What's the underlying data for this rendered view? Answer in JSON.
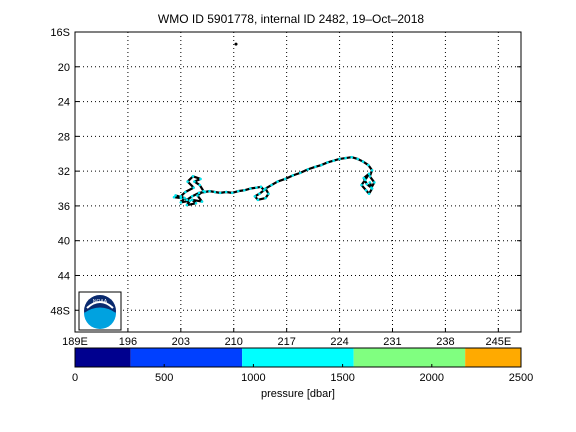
{
  "chart_data": {
    "type": "scatter",
    "title": "WMO ID 5901778, internal ID 2482, 19–Oct–2018",
    "map": {
      "lon_range": [
        189,
        248
      ],
      "lat_range": [
        -50.5,
        -16
      ],
      "x_ticks": [
        {
          "value": 189,
          "label": "189E"
        },
        {
          "value": 196,
          "label": "196"
        },
        {
          "value": 203,
          "label": "203"
        },
        {
          "value": 210,
          "label": "210"
        },
        {
          "value": 217,
          "label": "217"
        },
        {
          "value": 224,
          "label": "224"
        },
        {
          "value": 231,
          "label": "231"
        },
        {
          "value": 238,
          "label": "238"
        },
        {
          "value": 245,
          "label": "245E"
        }
      ],
      "y_ticks": [
        {
          "value": -16,
          "label": "16S"
        },
        {
          "value": -20,
          "label": "20"
        },
        {
          "value": -24,
          "label": "24"
        },
        {
          "value": -28,
          "label": "28"
        },
        {
          "value": -32,
          "label": "32"
        },
        {
          "value": -36,
          "label": "36"
        },
        {
          "value": -40,
          "label": "40"
        },
        {
          "value": -44,
          "label": "44"
        },
        {
          "value": -48,
          "label": "48S"
        }
      ],
      "grid": true,
      "logo": "noaa-logo"
    },
    "track": {
      "lon": [
        202.1,
        203.0,
        202.3,
        203.5,
        203.0,
        204.2,
        203.8,
        205.0,
        204.5,
        205.8,
        205.2,
        206.0,
        205.5,
        204.8,
        205.6,
        204.6,
        203.9,
        204.7,
        203.6,
        203.0,
        203.8,
        204.5,
        205.4,
        206.2,
        206.8,
        207.5,
        208.2,
        209.0,
        209.8,
        210.6,
        211.4,
        212.2,
        213.0,
        213.6,
        214.0,
        213.4,
        212.8,
        213.2,
        214.2,
        214.6,
        214.2,
        215.0,
        215.8,
        216.8,
        217.8,
        218.8,
        219.8,
        220.8,
        221.6,
        222.4,
        223.2,
        224.0,
        224.8,
        225.6,
        226.4,
        227.1,
        227.8,
        228.3,
        228.0,
        228.6,
        228.2,
        227.6,
        227.2,
        227.9,
        227.4,
        226.9,
        227.5,
        227.9,
        228.3,
        228.0
      ],
      "lat": [
        -35.0,
        -35.1,
        -34.8,
        -35.1,
        -35.6,
        -35.4,
        -35.9,
        -35.7,
        -35.3,
        -35.5,
        -34.8,
        -34.3,
        -33.6,
        -33.2,
        -32.9,
        -32.6,
        -33.2,
        -33.9,
        -34.4,
        -34.9,
        -35.3,
        -34.9,
        -34.5,
        -34.4,
        -34.3,
        -34.4,
        -34.5,
        -34.4,
        -34.5,
        -34.3,
        -34.2,
        -34.0,
        -33.9,
        -33.8,
        -34.2,
        -34.6,
        -34.9,
        -35.3,
        -35.1,
        -34.6,
        -34.0,
        -33.6,
        -33.2,
        -32.9,
        -32.5,
        -32.2,
        -31.8,
        -31.5,
        -31.3,
        -31.0,
        -30.8,
        -30.6,
        -30.5,
        -30.4,
        -30.6,
        -30.9,
        -31.3,
        -31.9,
        -32.6,
        -33.3,
        -33.9,
        -33.5,
        -32.8,
        -32.3,
        -33.0,
        -33.6,
        -34.2,
        -34.6,
        -34.0,
        -33.3
      ],
      "pressure": [
        1900,
        1850,
        1800,
        1900,
        1850,
        1900,
        1800,
        1850,
        1900,
        1800,
        1850,
        1900,
        1800,
        1850,
        1900,
        1850,
        1800,
        1900,
        1850,
        1800,
        1900,
        1850,
        1800,
        1900,
        1850,
        1800,
        1900,
        1850,
        1800,
        1900,
        1850,
        1800,
        1900,
        1850,
        1800,
        1900,
        1850,
        1800,
        1900,
        1850,
        1800,
        1900,
        1850,
        1800,
        1900,
        1850,
        1800,
        1900,
        1850,
        1800,
        1900,
        1850,
        1800,
        1900,
        1850,
        1800,
        1900,
        1850,
        1800,
        1900,
        1850,
        1800,
        1900,
        1850,
        1800,
        1900,
        1850,
        1800,
        1900,
        1850
      ],
      "track_color": "#000000",
      "point_color": "#00e5ee"
    },
    "stray_point": {
      "lon": 210.3,
      "lat": -17.4
    },
    "colorbar": {
      "label": "pressure [dbar]",
      "range": [
        0,
        2500
      ],
      "ticks": [
        0,
        500,
        1000,
        1500,
        2000,
        2500
      ],
      "bands": [
        {
          "from": 0,
          "to": 312,
          "color": "#00008f"
        },
        {
          "from": 312,
          "to": 937,
          "color": "#0040ff"
        },
        {
          "from": 937,
          "to": 1562,
          "color": "#00ffff"
        },
        {
          "from": 1562,
          "to": 2187,
          "color": "#80ff80"
        },
        {
          "from": 2187,
          "to": 2500,
          "color": "#ffaa00"
        }
      ]
    }
  }
}
